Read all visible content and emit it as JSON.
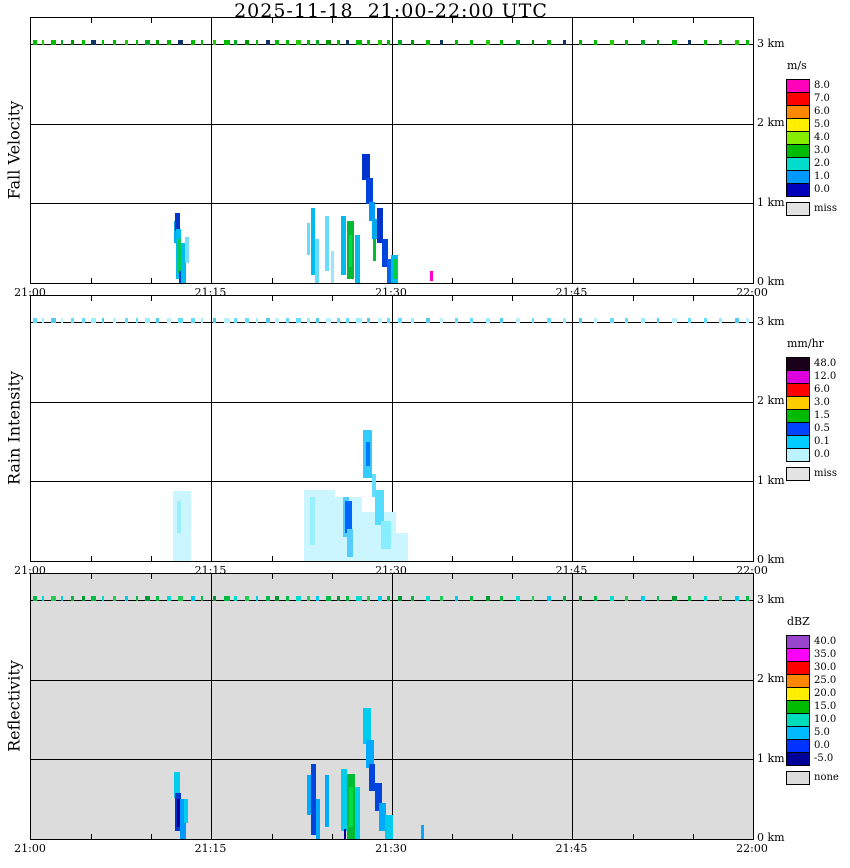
{
  "chart_data": {
    "type": "heatmap",
    "title": "2025-11-18  21:00-22:00 UTC",
    "time_axis": {
      "start": "21:00",
      "end": "22:00",
      "tick_labels": [
        "21:00",
        "21:15",
        "21:30",
        "21:45",
        "22:00"
      ],
      "tick_minutes": [
        0,
        15,
        30,
        45,
        60
      ],
      "minor_tick_step_min": 5
    },
    "height_axis": {
      "tick_labels": [
        "3 km",
        "2 km",
        "1 km",
        "0 km"
      ],
      "tick_km": [
        3,
        2,
        1,
        0
      ],
      "range_km": [
        0,
        3.34
      ]
    },
    "speckle_row_km": [
      3.0,
      3.06
    ],
    "speckles": [
      [
        0.2,
        0.3
      ],
      [
        0.9,
        0.2
      ],
      [
        1.7,
        0.35
      ],
      [
        2.5,
        0.2
      ],
      [
        3.3,
        0.3
      ],
      [
        4.2,
        0.25
      ],
      [
        5.0,
        0.4
      ],
      [
        5.9,
        0.2
      ],
      [
        6.8,
        0.3
      ],
      [
        7.8,
        0.25
      ],
      [
        8.7,
        0.2
      ],
      [
        9.5,
        0.35
      ],
      [
        10.4,
        0.25
      ],
      [
        11.3,
        0.3
      ],
      [
        12.2,
        0.4
      ],
      [
        13.3,
        0.3
      ],
      [
        14.1,
        0.2
      ],
      [
        15.1,
        0.3
      ],
      [
        16.0,
        0.5
      ],
      [
        16.9,
        0.25
      ],
      [
        17.8,
        0.3
      ],
      [
        18.7,
        0.2
      ],
      [
        19.5,
        0.4
      ],
      [
        20.3,
        0.3
      ],
      [
        21.2,
        0.25
      ],
      [
        22.0,
        0.45
      ],
      [
        22.9,
        0.3
      ],
      [
        23.7,
        0.2
      ],
      [
        24.5,
        0.4
      ],
      [
        25.4,
        0.3
      ],
      [
        26.2,
        0.25
      ],
      [
        27.0,
        0.5
      ],
      [
        27.9,
        0.3
      ],
      [
        28.8,
        0.35
      ],
      [
        29.6,
        0.25
      ],
      [
        30.5,
        0.3
      ],
      [
        31.6,
        0.2
      ],
      [
        32.8,
        0.35
      ],
      [
        34.0,
        0.25
      ],
      [
        35.2,
        0.3
      ],
      [
        36.5,
        0.2
      ],
      [
        37.8,
        0.35
      ],
      [
        39.0,
        0.25
      ],
      [
        40.3,
        0.3
      ],
      [
        41.6,
        0.2
      ],
      [
        42.9,
        0.35
      ],
      [
        44.2,
        0.25
      ],
      [
        45.5,
        0.3
      ],
      [
        46.8,
        0.2
      ],
      [
        48.1,
        0.35
      ],
      [
        49.4,
        0.25
      ],
      [
        50.7,
        0.3
      ],
      [
        52.0,
        0.2
      ],
      [
        53.3,
        0.35
      ],
      [
        54.6,
        0.25
      ],
      [
        55.9,
        0.3
      ],
      [
        57.2,
        0.2
      ],
      [
        58.5,
        0.35
      ],
      [
        59.4,
        0.25
      ]
    ],
    "panels": [
      {
        "id": "fall-velocity",
        "label": "Fall Velocity",
        "unit": "m/s",
        "background": "#ffffff",
        "speckle_colors": [
          "#00bb00",
          "#22cc00",
          "#00bb00",
          "#00aa22",
          "#009900",
          "#00bb00",
          "#113366",
          "#00bb00"
        ],
        "colorbar": {
          "entries": [
            {
              "label": "8.0",
              "color": "#ff00bb"
            },
            {
              "label": "7.0",
              "color": "#ff0000"
            },
            {
              "label": "6.0",
              "color": "#ff8800"
            },
            {
              "label": "5.0",
              "color": "#ffee00"
            },
            {
              "label": "4.0",
              "color": "#88ee00"
            },
            {
              "label": "3.0",
              "color": "#00bb00"
            },
            {
              "label": "2.0",
              "color": "#00ddcc"
            },
            {
              "label": "1.0",
              "color": "#0099ff"
            },
            {
              "label": "0.0",
              "color": "#0000bb"
            }
          ],
          "missing": {
            "label": "miss",
            "color": "#e3e3e3"
          }
        },
        "marks": [
          [
            11.85,
            12.15,
            0.5,
            0.78,
            "#00aaee"
          ],
          [
            12.0,
            12.35,
            0.66,
            0.88,
            "#0033cc"
          ],
          [
            12.05,
            12.5,
            0.05,
            0.68,
            "#00bbee"
          ],
          [
            12.25,
            12.5,
            0.12,
            0.55,
            "#00cc55"
          ],
          [
            12.3,
            12.55,
            0.0,
            0.15,
            "#0044cc"
          ],
          [
            12.5,
            12.9,
            0.0,
            0.5,
            "#00bbee"
          ],
          [
            12.8,
            13.1,
            0.25,
            0.58,
            "#77ddff"
          ],
          [
            22.9,
            23.2,
            0.35,
            0.75,
            "#66ddff"
          ],
          [
            23.3,
            23.6,
            0.1,
            0.95,
            "#00bbee"
          ],
          [
            23.6,
            23.95,
            0.0,
            0.55,
            "#66ddff"
          ],
          [
            24.4,
            24.75,
            0.15,
            0.85,
            "#66ddff"
          ],
          [
            24.9,
            25.2,
            0.0,
            0.4,
            "#99e6ff"
          ],
          [
            25.8,
            26.2,
            0.1,
            0.85,
            "#00bbee"
          ],
          [
            26.25,
            26.85,
            0.05,
            0.78,
            "#00bb33"
          ],
          [
            26.45,
            26.7,
            0.2,
            0.6,
            "#00dd44"
          ],
          [
            26.9,
            27.3,
            0.0,
            0.6,
            "#00bbee"
          ],
          [
            27.5,
            28.2,
            1.3,
            1.62,
            "#0033cc"
          ],
          [
            27.8,
            28.45,
            1.0,
            1.32,
            "#0044dd"
          ],
          [
            28.1,
            28.6,
            0.78,
            1.02,
            "#0099ff"
          ],
          [
            28.35,
            28.75,
            0.55,
            0.8,
            "#00aaee"
          ],
          [
            28.45,
            28.7,
            0.28,
            0.55,
            "#00bb33"
          ],
          [
            28.75,
            29.25,
            0.5,
            0.95,
            "#0033cc"
          ],
          [
            29.15,
            29.7,
            0.2,
            0.55,
            "#0044dd"
          ],
          [
            29.55,
            30.1,
            0.0,
            0.3,
            "#0066ee"
          ],
          [
            29.9,
            30.5,
            0.0,
            0.35,
            "#00bbee"
          ],
          [
            30.1,
            30.4,
            0.05,
            0.3,
            "#00cc44"
          ],
          [
            33.15,
            33.4,
            0.03,
            0.15,
            "#ff00cc"
          ]
        ]
      },
      {
        "id": "rain-intensity",
        "label": "Rain Intensity",
        "unit": "mm/hr",
        "background": "#ffffff",
        "speckle_colors": [
          "#66ddff",
          "#99eeff",
          "#55ccee",
          "#bbf0ff",
          "#66ddff"
        ],
        "colorbar": {
          "entries": [
            {
              "label": "48.0",
              "color": "#1a001a"
            },
            {
              "label": "12.0",
              "color": "#dd00dd"
            },
            {
              "label": "6.0",
              "color": "#ff0000"
            },
            {
              "label": "3.0",
              "color": "#ffcc00"
            },
            {
              "label": "1.5",
              "color": "#00bb00"
            },
            {
              "label": "0.5",
              "color": "#0044ff"
            },
            {
              "label": "0.1",
              "color": "#00ccff"
            },
            {
              "label": "0.0",
              "color": "#bbf4ff"
            }
          ],
          "missing": {
            "label": "miss",
            "color": "#e3e3e3"
          }
        },
        "marks": [
          [
            11.8,
            13.3,
            0.0,
            0.88,
            "#ccf6ff"
          ],
          [
            12.1,
            12.5,
            0.35,
            0.75,
            "#99eeff"
          ],
          [
            22.7,
            25.3,
            0.0,
            0.9,
            "#ccf6ff"
          ],
          [
            25.3,
            27.5,
            0.0,
            0.8,
            "#ccf6ff"
          ],
          [
            27.5,
            30.3,
            0.0,
            0.62,
            "#ccf6ff"
          ],
          [
            23.2,
            23.6,
            0.2,
            0.8,
            "#99eeff"
          ],
          [
            25.9,
            26.4,
            0.3,
            0.8,
            "#55ccff"
          ],
          [
            26.1,
            26.7,
            0.35,
            0.75,
            "#0066ff"
          ],
          [
            26.3,
            26.8,
            0.05,
            0.4,
            "#55ccff"
          ],
          [
            27.6,
            28.35,
            1.05,
            1.65,
            "#33ccff"
          ],
          [
            27.85,
            28.2,
            1.2,
            1.5,
            "#0077ff"
          ],
          [
            28.3,
            28.7,
            0.8,
            1.1,
            "#66ddff"
          ],
          [
            28.6,
            29.3,
            0.45,
            0.9,
            "#55ddff"
          ],
          [
            29.1,
            29.9,
            0.15,
            0.5,
            "#88eeff"
          ],
          [
            30.2,
            31.3,
            0.0,
            0.35,
            "#ccf6ff"
          ]
        ]
      },
      {
        "id": "reflectivity",
        "label": "Reflectivity",
        "unit": "dBZ",
        "background": "#dcdcdc",
        "speckle_colors": [
          "#00bb44",
          "#00ddcc",
          "#22cc55",
          "#00ccee",
          "#00bb44",
          "#009933"
        ],
        "colorbar": {
          "entries": [
            {
              "label": "40.0",
              "color": "#9944cc"
            },
            {
              "label": "35.0",
              "color": "#ff00ff"
            },
            {
              "label": "30.0",
              "color": "#ff0000"
            },
            {
              "label": "25.0",
              "color": "#ff8800"
            },
            {
              "label": "20.0",
              "color": "#ffee00"
            },
            {
              "label": "15.0",
              "color": "#00bb00"
            },
            {
              "label": "10.0",
              "color": "#00ddbb"
            },
            {
              "label": "5.0",
              "color": "#00bbff"
            },
            {
              "label": "0.0",
              "color": "#0033ff"
            },
            {
              "label": "-5.0",
              "color": "#000099"
            }
          ],
          "missing": {
            "label": "none",
            "color": "#dcdcdc"
          }
        },
        "marks": [
          [
            11.9,
            12.4,
            0.52,
            0.85,
            "#00ccee"
          ],
          [
            12.0,
            12.45,
            0.1,
            0.58,
            "#0033cc"
          ],
          [
            12.15,
            12.4,
            0.15,
            0.5,
            "#000099"
          ],
          [
            12.4,
            12.85,
            0.0,
            0.5,
            "#0099ff"
          ],
          [
            12.75,
            13.05,
            0.2,
            0.5,
            "#00ccee"
          ],
          [
            22.9,
            23.25,
            0.3,
            0.8,
            "#00aaff"
          ],
          [
            23.3,
            23.65,
            0.05,
            0.95,
            "#0044dd"
          ],
          [
            23.65,
            24.0,
            0.0,
            0.5,
            "#00aaff"
          ],
          [
            24.45,
            24.8,
            0.15,
            0.8,
            "#00aaff"
          ],
          [
            25.8,
            26.25,
            0.1,
            0.88,
            "#00ccee"
          ],
          [
            26.0,
            26.2,
            0.0,
            0.12,
            "#000099"
          ],
          [
            26.25,
            26.9,
            0.0,
            0.82,
            "#00bb33"
          ],
          [
            26.45,
            26.75,
            0.15,
            0.65,
            "#00dd44"
          ],
          [
            26.9,
            27.35,
            0.0,
            0.65,
            "#00ccee"
          ],
          [
            27.55,
            28.25,
            1.2,
            1.65,
            "#00ccee"
          ],
          [
            27.8,
            28.5,
            0.9,
            1.25,
            "#00aaff"
          ],
          [
            28.1,
            28.6,
            0.6,
            0.95,
            "#0044dd"
          ],
          [
            28.6,
            29.2,
            0.35,
            0.7,
            "#0044dd"
          ],
          [
            28.9,
            29.5,
            0.1,
            0.45,
            "#00aaff"
          ],
          [
            29.4,
            30.1,
            0.0,
            0.3,
            "#00ccee"
          ],
          [
            32.4,
            32.7,
            0.0,
            0.18,
            "#00aaff"
          ]
        ]
      }
    ]
  }
}
